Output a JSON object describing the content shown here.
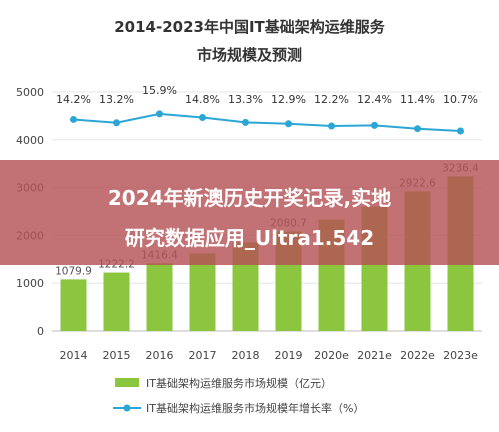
{
  "chart_data": {
    "type": "bar",
    "title": "2014-2023年中国IT基础架构运维服务",
    "subtitle": "市场规模及预测",
    "categories": [
      "2014",
      "2015",
      "2016",
      "2017",
      "2018",
      "2019",
      "2020e",
      "2021e",
      "2022e",
      "2023e"
    ],
    "series": [
      {
        "name": "IT基础架构运维服务市场规模（亿元）",
        "type": "bar",
        "axis": "left",
        "values": [
          1079.9,
          1222.2,
          1416.4,
          1620,
          1850,
          2080.7,
          2330,
          2600,
          2922.6,
          3236.4
        ],
        "value_labels": [
          "1079.9",
          "1222.2",
          "1416.4",
          "",
          "",
          "2080.7",
          "",
          "",
          "2922.6",
          "3236.4"
        ],
        "color": "#8cc63f"
      },
      {
        "name": "IT基础架构运维服务市场规模年增长率（%）",
        "type": "line",
        "axis": "right",
        "values": [
          14.2,
          13.2,
          15.9,
          14.8,
          13.3,
          12.9,
          12.2,
          12.4,
          11.4,
          10.7
        ],
        "value_labels": [
          "14.2%",
          "13.2%",
          "15.9%",
          "14.8%",
          "13.3%",
          "12.9%",
          "12.2%",
          "12.4%",
          "11.4%",
          "10.7%"
        ],
        "color": "#2ba6d5"
      }
    ],
    "y_ticks": [
      "0",
      "1000",
      "2000",
      "3000",
      "4000",
      "5000"
    ],
    "ylim": [
      0,
      5000
    ],
    "grid": true,
    "legend_position": "bottom"
  },
  "overlay": {
    "line1": "2024年新澳历史开奖记录,实地",
    "line2": "研究数据应用_Ultra1.542",
    "color": "#b55256"
  }
}
